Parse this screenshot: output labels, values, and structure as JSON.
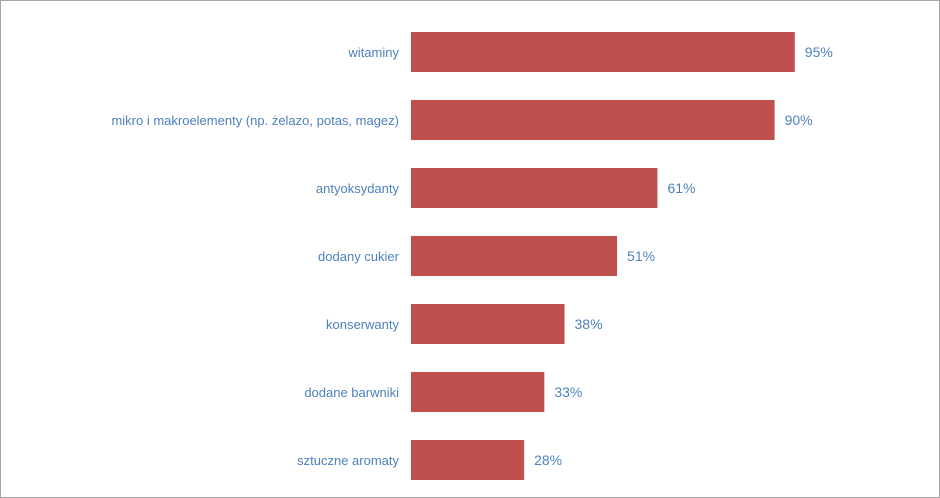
{
  "chart_data": {
    "type": "bar",
    "orientation": "horizontal",
    "categories": [
      "witaminy",
      "mikro i makroelementy (np. żelazo, potas, magez)",
      "antyoksydanty",
      "dodany cukier",
      "konserwanty",
      "dodane barwniki",
      "sztuczne aromaty"
    ],
    "values": [
      95,
      90,
      61,
      51,
      38,
      33,
      28
    ],
    "value_labels": [
      "95%",
      "90%",
      "61%",
      "51%",
      "38%",
      "33%",
      "28%"
    ],
    "title": "",
    "xlabel": "",
    "ylabel": "",
    "xlim": [
      0,
      100
    ],
    "grid": false,
    "legend": "none",
    "colors": {
      "bar": "#c0504d",
      "label": "#4f81bd",
      "border": "#a6a6a6"
    }
  }
}
